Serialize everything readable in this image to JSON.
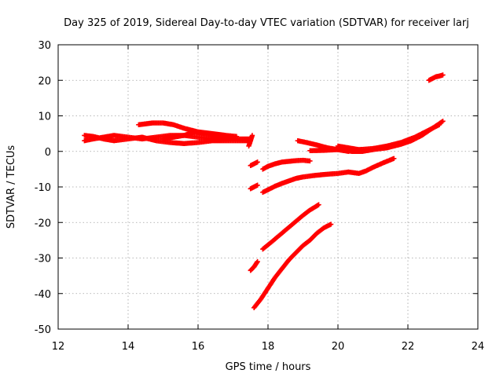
{
  "chart_data": {
    "type": "scatter",
    "title": "Day 325 of 2019, Sidereal Day-to-day VTEC variation (SDTVAR) for receiver larj",
    "xlabel": "GPS time / hours",
    "ylabel": "SDTVAR / TECUs",
    "xlim": [
      12,
      24
    ],
    "ylim": [
      -50,
      30
    ],
    "xticks": [
      "12",
      "14",
      "16",
      "18",
      "20",
      "22",
      "24"
    ],
    "yticks": [
      "30",
      "20",
      "10",
      "0",
      "-10",
      "-20",
      "-30",
      "-40",
      "-50"
    ],
    "grid": true,
    "marker": "plus",
    "color": "#ff0000",
    "series": [
      {
        "x": [
          12.75,
          13.0,
          13.3,
          13.6,
          14.0,
          14.4,
          14.8,
          15.2,
          15.6,
          16.0,
          16.4,
          16.8,
          17.2,
          17.5
        ],
        "y": [
          3.0,
          3.5,
          4.0,
          4.5,
          4.0,
          3.5,
          4.0,
          4.5,
          4.5,
          4.0,
          3.5,
          3.5,
          3.5,
          3.5
        ]
      },
      {
        "x": [
          12.75,
          13.0,
          13.3,
          13.6,
          14.0,
          14.4,
          14.8,
          15.2,
          15.6,
          16.0,
          16.4,
          16.8,
          17.2,
          17.5
        ],
        "y": [
          4.5,
          4.2,
          3.5,
          3.0,
          3.5,
          4.0,
          3.0,
          2.5,
          2.2,
          2.5,
          3.0,
          3.0,
          3.0,
          3.0
        ]
      },
      {
        "x": [
          14.3,
          14.7,
          15.0,
          15.3,
          15.6,
          16.0,
          16.4,
          16.8,
          17.1
        ],
        "y": [
          7.5,
          8.0,
          8.0,
          7.5,
          6.5,
          5.5,
          5.0,
          4.5,
          4.2
        ]
      },
      {
        "x": [
          15.0,
          15.3,
          15.6,
          15.9,
          16.2,
          16.6,
          17.0
        ],
        "y": [
          3.5,
          4.0,
          4.5,
          5.5,
          5.0,
          4.5,
          4.0
        ]
      },
      {
        "x": [
          17.45,
          17.5,
          17.55
        ],
        "y": [
          1.5,
          3.0,
          4.5
        ]
      },
      {
        "x": [
          17.5,
          17.6,
          17.7
        ],
        "y": [
          -4.0,
          -3.5,
          -3.0
        ]
      },
      {
        "x": [
          17.85,
          18.0,
          18.2,
          18.4,
          18.6,
          18.8,
          19.0,
          19.2
        ],
        "y": [
          -5.0,
          -4.2,
          -3.5,
          -3.0,
          -2.8,
          -2.6,
          -2.5,
          -2.7
        ]
      },
      {
        "x": [
          18.85,
          19.1,
          19.4,
          19.7,
          20.0,
          20.3
        ],
        "y": [
          3.0,
          2.5,
          1.8,
          1.0,
          0.5,
          0.0
        ]
      },
      {
        "x": [
          19.2,
          19.6,
          20.0,
          20.4,
          20.7,
          21.0,
          21.4,
          21.8,
          22.1,
          22.4,
          22.7,
          23.0
        ],
        "y": [
          0.2,
          0.3,
          0.5,
          0.0,
          0.0,
          0.5,
          1.0,
          2.0,
          3.0,
          4.5,
          6.5,
          8.5
        ]
      },
      {
        "x": [
          20.0,
          20.3,
          20.6,
          21.0,
          21.4,
          21.8,
          22.2,
          22.6,
          22.9
        ],
        "y": [
          1.5,
          1.0,
          0.5,
          0.8,
          1.5,
          2.5,
          4.0,
          6.0,
          7.5
        ]
      },
      {
        "x": [
          22.6,
          22.7,
          22.8,
          22.9,
          23.0
        ],
        "y": [
          20.0,
          20.5,
          21.0,
          21.2,
          21.5
        ]
      },
      {
        "x": [
          17.5,
          17.6,
          17.7
        ],
        "y": [
          -10.5,
          -10.0,
          -9.5
        ]
      },
      {
        "x": [
          17.85,
          18.0,
          18.2,
          18.4,
          18.6,
          18.8,
          19.0,
          19.3,
          19.6,
          20.0,
          20.3,
          20.6,
          20.8,
          21.0,
          21.3,
          21.6
        ],
        "y": [
          -11.5,
          -10.8,
          -9.8,
          -9.0,
          -8.3,
          -7.6,
          -7.2,
          -6.8,
          -6.5,
          -6.2,
          -5.8,
          -6.2,
          -5.5,
          -4.5,
          -3.2,
          -2.0
        ]
      },
      {
        "x": [
          17.5,
          17.6,
          17.7
        ],
        "y": [
          -33.5,
          -32.5,
          -31.0
        ]
      },
      {
        "x": [
          17.85,
          18.1,
          18.4,
          18.7,
          19.0,
          19.2,
          19.45
        ],
        "y": [
          -27.5,
          -25.5,
          -23.0,
          -20.5,
          -18.0,
          -16.5,
          -15.0
        ]
      },
      {
        "x": [
          17.6,
          17.8,
          18.0,
          18.2,
          18.4,
          18.6,
          18.8,
          19.0,
          19.2,
          19.4,
          19.6,
          19.8
        ],
        "y": [
          -44.0,
          -41.5,
          -38.5,
          -35.5,
          -33.0,
          -30.5,
          -28.5,
          -26.5,
          -25.0,
          -23.0,
          -21.5,
          -20.5
        ]
      }
    ]
  }
}
